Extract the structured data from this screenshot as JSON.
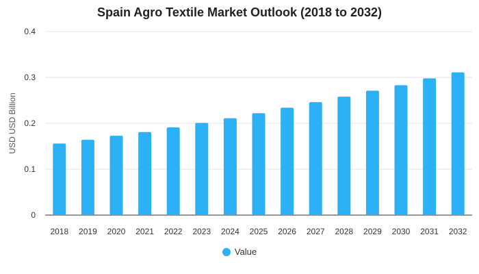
{
  "chart_data": {
    "type": "bar",
    "title": "Spain Agro Textile Market Outlook (2018 to 2032)",
    "xlabel": "",
    "ylabel": "USD USD Billion",
    "categories": [
      "2018",
      "2019",
      "2020",
      "2021",
      "2022",
      "2023",
      "2024",
      "2025",
      "2026",
      "2027",
      "2028",
      "2029",
      "2030",
      "2031",
      "2032"
    ],
    "series": [
      {
        "name": "Value",
        "values": [
          0.156,
          0.164,
          0.173,
          0.181,
          0.191,
          0.201,
          0.211,
          0.222,
          0.234,
          0.246,
          0.258,
          0.271,
          0.283,
          0.298,
          0.311
        ]
      }
    ],
    "ylim": [
      0,
      0.4
    ],
    "yticks": [
      "0",
      "0.1",
      "0.2",
      "0.3",
      "0.4"
    ],
    "grid": true,
    "legend_position": "bottom",
    "colors": {
      "bar": "#2EB0F5",
      "grid": "#e6e6e6",
      "axis": "#333333"
    }
  }
}
